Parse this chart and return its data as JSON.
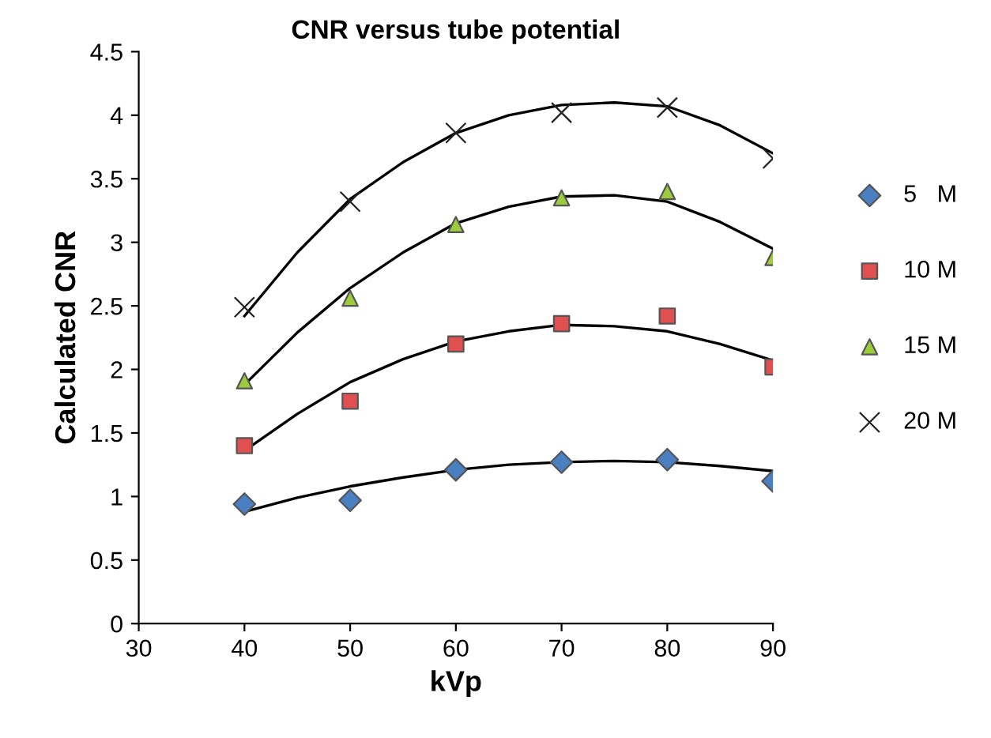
{
  "chart_data": {
    "type": "scatter",
    "title": "CNR versus tube potential",
    "xlabel": "kVp",
    "ylabel": "Calculated CNR",
    "x": [
      40,
      50,
      60,
      70,
      80,
      90
    ],
    "series": [
      {
        "name": "5   M",
        "color": "#4a7fc1",
        "marker": "diamond",
        "values": [
          0.94,
          0.97,
          1.21,
          1.27,
          1.29,
          1.12
        ]
      },
      {
        "name": "10 M",
        "color": "#e05050",
        "marker": "square",
        "values": [
          1.4,
          1.75,
          2.2,
          2.36,
          2.42,
          2.02
        ]
      },
      {
        "name": "15 M",
        "color": "#9ccc3c",
        "marker": "triangle",
        "values": [
          1.91,
          2.56,
          3.14,
          3.35,
          3.4,
          2.88
        ]
      },
      {
        "name": "20 M",
        "color": "#222222",
        "marker": "cross",
        "values": [
          2.49,
          3.32,
          3.86,
          4.02,
          4.06,
          3.66
        ]
      },
      {
        "type": "line",
        "color": "#000000",
        "marker": "none",
        "x": [
          40,
          45,
          50,
          55,
          60,
          65,
          70,
          75,
          80,
          85,
          90
        ],
        "values": [
          0.88,
          0.99,
          1.08,
          1.15,
          1.21,
          1.25,
          1.27,
          1.28,
          1.27,
          1.24,
          1.2
        ]
      },
      {
        "type": "line",
        "color": "#000000",
        "marker": "none",
        "x": [
          40,
          45,
          50,
          55,
          60,
          65,
          70,
          75,
          80,
          85,
          90
        ],
        "values": [
          1.36,
          1.65,
          1.9,
          2.08,
          2.22,
          2.3,
          2.35,
          2.34,
          2.3,
          2.2,
          2.07
        ]
      },
      {
        "type": "line",
        "color": "#000000",
        "marker": "none",
        "x": [
          40,
          45,
          50,
          55,
          60,
          65,
          70,
          75,
          80,
          85,
          90
        ],
        "values": [
          1.88,
          2.29,
          2.64,
          2.92,
          3.15,
          3.28,
          3.36,
          3.37,
          3.32,
          3.16,
          2.95
        ]
      },
      {
        "type": "line",
        "color": "#000000",
        "marker": "none",
        "x": [
          40,
          45,
          50,
          55,
          60,
          65,
          70,
          75,
          80,
          85,
          90
        ],
        "values": [
          2.42,
          2.92,
          3.34,
          3.63,
          3.86,
          4.0,
          4.08,
          4.1,
          4.07,
          3.92,
          3.7
        ]
      }
    ],
    "xlim": [
      30,
      90
    ],
    "xticks": [
      30,
      40,
      50,
      60,
      70,
      80,
      90
    ],
    "ylim": [
      0,
      4.5
    ],
    "yticks": [
      0,
      0.5,
      1,
      1.5,
      2,
      2.5,
      3,
      3.5,
      4,
      4.5
    ],
    "grid": false,
    "legend": "right"
  }
}
